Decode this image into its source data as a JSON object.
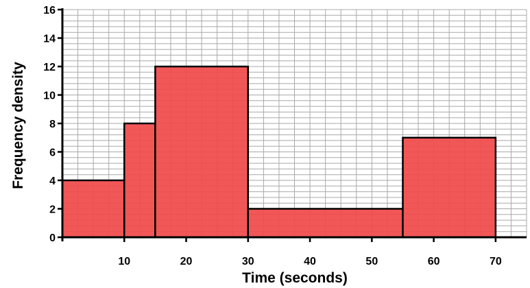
{
  "chart_data": {
    "type": "histogram",
    "title": "",
    "xlabel": "Time (seconds)",
    "ylabel": "Frequency density",
    "xlim": [
      0,
      75
    ],
    "ylim": [
      0,
      16
    ],
    "x_minor_step": 2.5,
    "y_minor_step": 0.4,
    "x_ticks": [
      10,
      20,
      30,
      40,
      50,
      60,
      70
    ],
    "y_ticks": [
      0,
      2,
      4,
      6,
      8,
      10,
      12,
      14,
      16
    ],
    "grid": true,
    "bar_color": "#f04a4a",
    "bar_stroke": "#000000",
    "bins": [
      {
        "start": 0,
        "end": 10,
        "value": 4
      },
      {
        "start": 10,
        "end": 15,
        "value": 8
      },
      {
        "start": 15,
        "end": 30,
        "value": 12
      },
      {
        "start": 30,
        "end": 55,
        "value": 2
      },
      {
        "start": 55,
        "end": 70,
        "value": 7
      }
    ]
  }
}
